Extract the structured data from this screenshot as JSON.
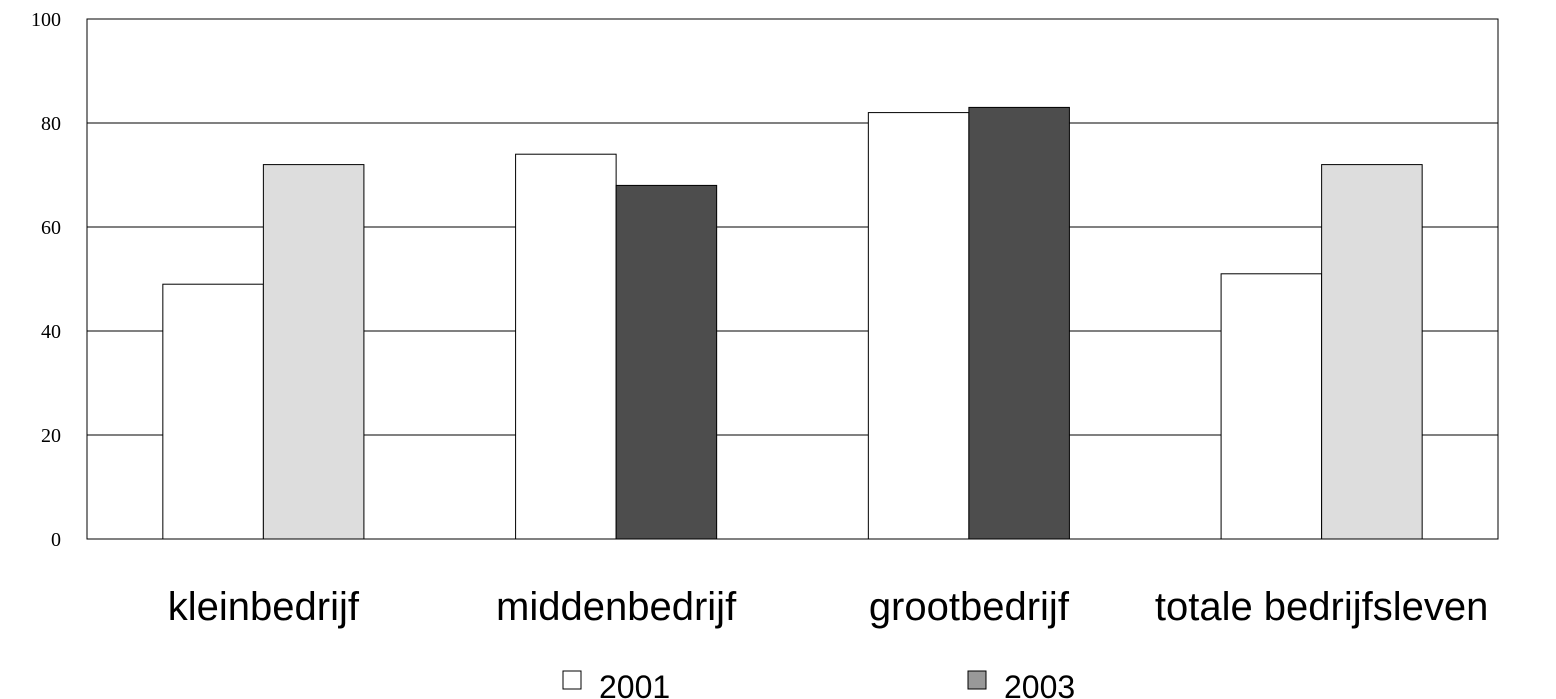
{
  "chart_data": {
    "type": "bar",
    "categories": [
      "kleinbedrijf",
      "middenbedrijf",
      "grootbedrijf",
      "totale bedrijfsleven"
    ],
    "series": [
      {
        "name": "2001",
        "values": [
          49,
          74,
          82,
          51
        ]
      },
      {
        "name": "2003",
        "values": [
          72,
          68,
          83,
          72
        ]
      }
    ],
    "ylim": [
      0,
      100
    ],
    "yticks": [
      0,
      20,
      40,
      60,
      80,
      100
    ],
    "grid": true,
    "legend_position": "bottom",
    "colors": {
      "2001": "#ffffff",
      "2003_bars_small_and_total": "#dddddd",
      "2003_bars_mid_and_large": "#4d4d4d",
      "2003_legend_swatch": "#999999",
      "gridline": "#000000"
    }
  }
}
